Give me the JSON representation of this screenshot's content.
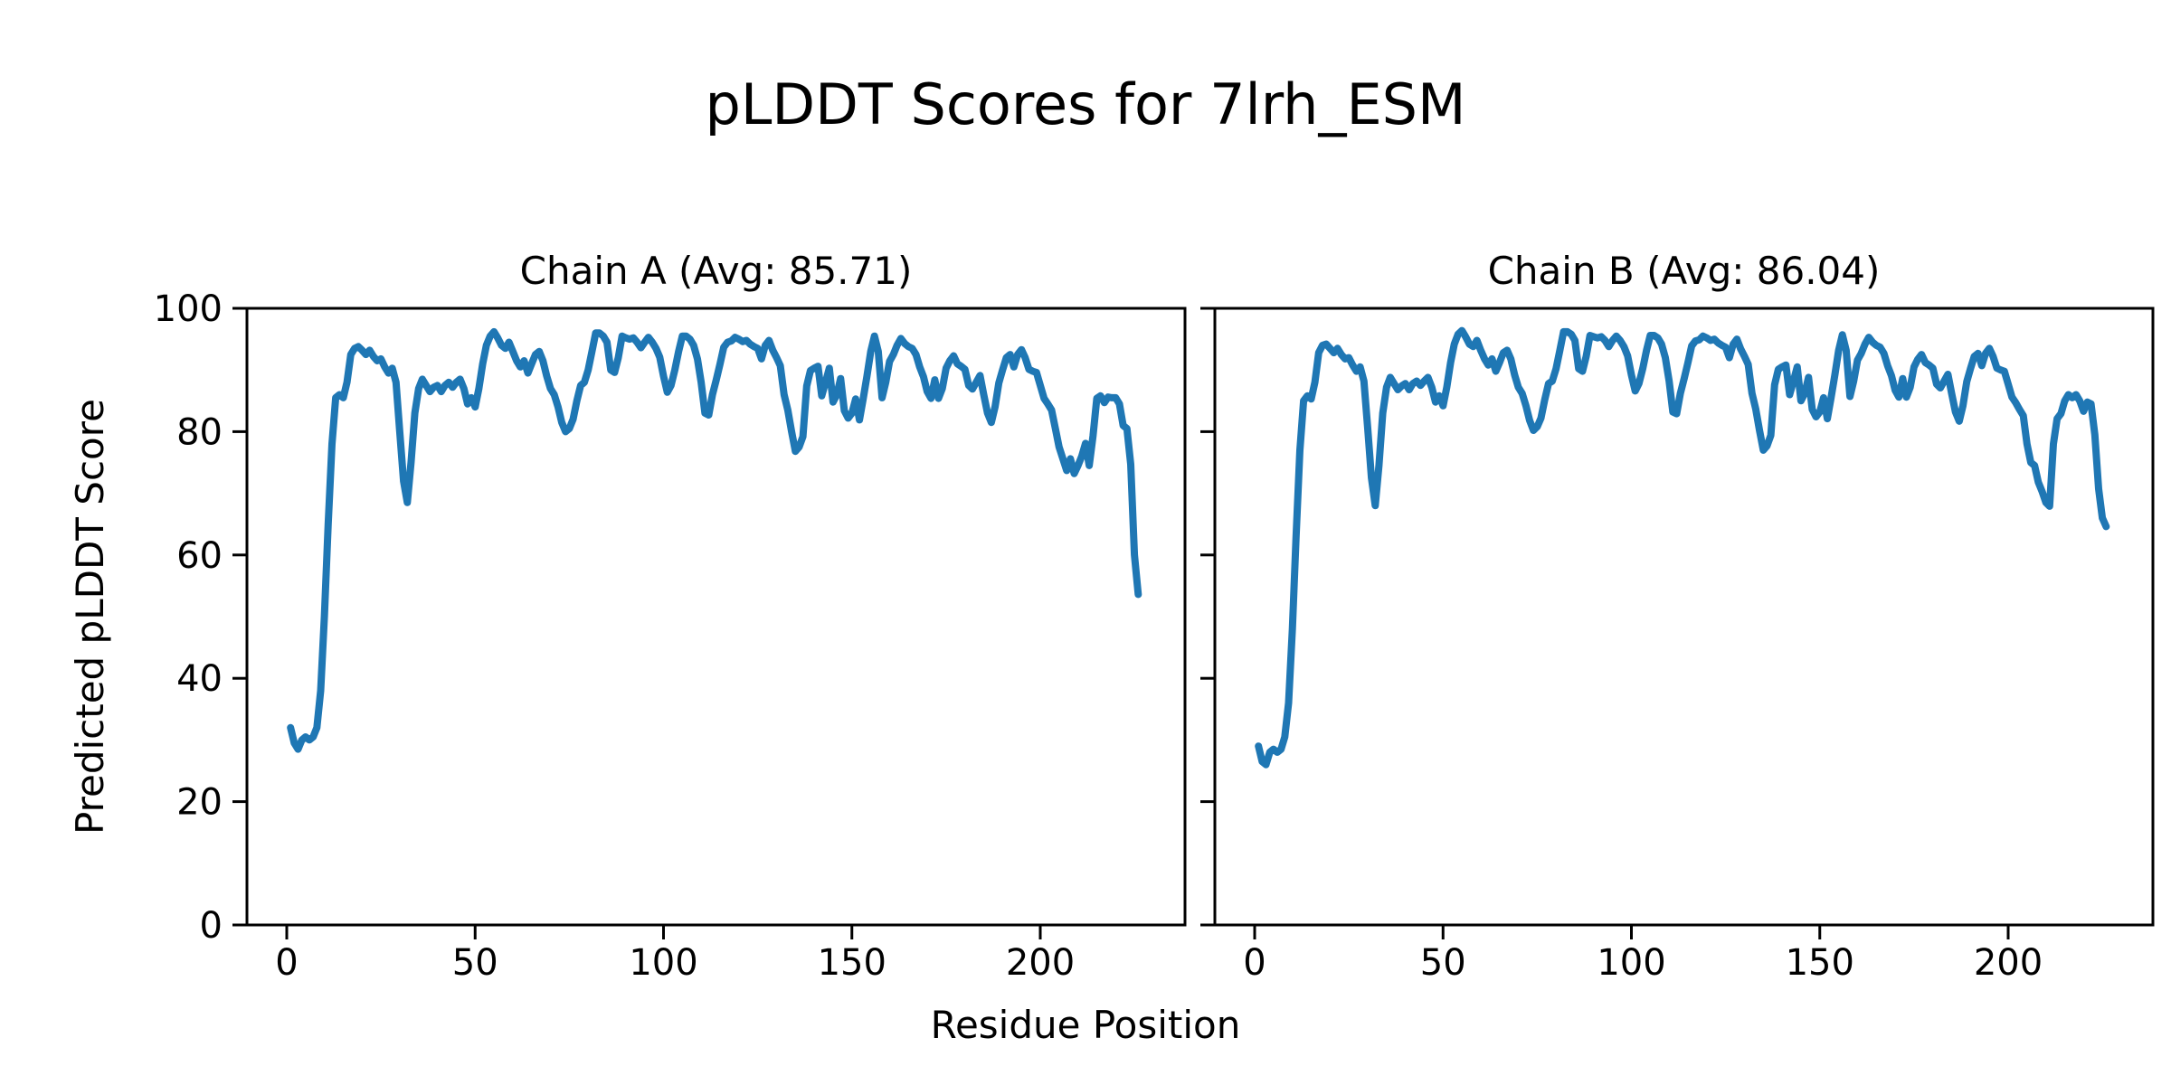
{
  "figure": {
    "title": "pLDDT Scores for 7lrh_ESM",
    "background_color": "#ffffff",
    "text_color": "#000000"
  },
  "chart_data": {
    "type": "line",
    "title": "pLDDT Scores for 7lrh_ESM",
    "xlabel": "Residue Position",
    "ylabel": "Predicted pLDDT Score",
    "line_color": "#1f77b4",
    "axis_color": "#000000",
    "grid": false,
    "legend": null,
    "ylim": [
      0,
      100
    ],
    "xlim": [
      -10.5,
      240.5
    ],
    "yticks": [
      0,
      20,
      40,
      60,
      80,
      100
    ],
    "xticks": [
      0,
      50,
      100,
      150,
      200
    ],
    "x_start": 1,
    "plots": [
      {
        "title": "Chain A (Avg: 85.71)",
        "chain": "A",
        "avg": 85.71,
        "values": [
          32,
          29.5,
          28.5,
          30,
          30.5,
          30,
          30.5,
          32,
          38,
          50,
          65,
          78,
          85.5,
          86,
          85.5,
          88,
          92.5,
          93.5,
          93.8,
          93.2,
          92.5,
          93.2,
          92.2,
          91.5,
          91.8,
          90.5,
          89.5,
          90.3,
          88,
          80,
          72,
          68.5,
          75,
          83,
          87,
          88.5,
          87.5,
          86.5,
          87.2,
          87.5,
          86.5,
          87.5,
          88,
          87.2,
          88,
          88.5,
          87,
          84.5,
          85.5,
          84,
          87,
          91,
          94,
          95.5,
          96.2,
          95.2,
          94,
          93.5,
          94.5,
          93,
          91.5,
          90.5,
          91.5,
          89.5,
          91,
          92.5,
          93,
          91.5,
          89,
          87,
          86,
          84,
          81.5,
          80,
          80.5,
          82,
          85,
          87.5,
          88,
          90,
          93,
          96,
          96,
          95.5,
          94.5,
          90,
          89.6,
          92,
          95.5,
          95.2,
          95,
          95.2,
          94.5,
          93.6,
          94.5,
          95.3,
          94.5,
          93.5,
          92.1,
          89,
          86.4,
          87.5,
          90,
          93,
          95.5,
          95.5,
          95,
          94,
          91.8,
          88,
          83,
          82.7,
          86,
          88.4,
          91,
          93.7,
          94.5,
          94.7,
          95.3,
          95,
          94.6,
          94.8,
          94.2,
          93.8,
          93.5,
          91.8,
          94,
          94.8,
          93.2,
          92,
          90.7,
          86,
          83.5,
          80,
          76.8,
          77.5,
          79.2,
          87.4,
          89.9,
          90.3,
          90.6,
          85.8,
          88,
          90.3,
          84.8,
          86,
          88.6,
          83.4,
          82.2,
          83,
          85.3,
          81.9,
          85.3,
          89,
          93,
          95.5,
          93,
          85.5,
          88,
          91.4,
          92.5,
          94,
          95.1,
          94.3,
          93.8,
          93.5,
          92.5,
          90.5,
          88.9,
          86.5,
          85.4,
          88.4,
          85.4,
          87,
          90.3,
          91.5,
          92.3,
          91,
          90.6,
          90.1,
          87.5,
          86.9,
          88,
          89.1,
          86,
          83,
          81.5,
          84,
          87.9,
          90,
          92,
          92.5,
          90.5,
          92.5,
          93.3,
          92,
          90.1,
          89.8,
          89.6,
          87.5,
          85.4,
          84.5,
          83.5,
          80.5,
          77.5,
          75.6,
          73.7,
          75.6,
          73.2,
          74.5,
          76,
          78.1,
          74.5,
          79.3,
          85.4,
          85.8,
          84.7,
          85.6,
          85.5,
          85.5,
          84.5,
          81,
          80.5,
          74.7,
          60,
          53.6
        ]
      },
      {
        "title": "Chain B (Avg: 86.04)",
        "chain": "B",
        "avg": 86.04,
        "values": [
          29,
          26.5,
          26,
          28,
          28.5,
          28,
          28.5,
          30.5,
          36,
          48,
          63,
          77,
          85,
          85.8,
          85.3,
          88,
          92.8,
          94,
          94.2,
          93.5,
          92.8,
          93.5,
          92.5,
          91.8,
          92,
          90.8,
          89.8,
          90.5,
          88.2,
          80.5,
          72.5,
          68,
          74.5,
          83,
          87.2,
          88.8,
          87.8,
          86.8,
          87.4,
          87.8,
          86.8,
          87.8,
          88.2,
          87.5,
          88.2,
          88.8,
          87.2,
          84.8,
          85.8,
          84.2,
          87.2,
          91.2,
          94.2,
          95.8,
          96.4,
          95.4,
          94.2,
          93.8,
          94.8,
          93.2,
          91.8,
          90.8,
          91.8,
          89.8,
          91.2,
          92.8,
          93.2,
          91.8,
          89.2,
          87.2,
          86.2,
          84.2,
          81.8,
          80.2,
          80.8,
          82.2,
          85.2,
          87.8,
          88.2,
          90.2,
          93.2,
          96.2,
          96.2,
          95.8,
          94.8,
          90.2,
          89.8,
          92.2,
          95.6,
          95.4,
          95.2,
          95.4,
          94.8,
          93.8,
          94.8,
          95.5,
          94.8,
          93.8,
          92.3,
          89.2,
          86.6,
          87.8,
          90.2,
          93.2,
          95.6,
          95.6,
          95.2,
          94.2,
          92,
          88.2,
          83.2,
          82.9,
          86.2,
          88.6,
          91.2,
          93.9,
          94.7,
          94.9,
          95.5,
          95.2,
          94.8,
          95,
          94.4,
          94,
          93.7,
          92,
          94.2,
          95,
          93.4,
          92.2,
          90.9,
          86.2,
          83.7,
          80.2,
          77,
          77.7,
          79.4,
          87.6,
          90.1,
          90.5,
          90.8,
          86,
          88.2,
          90.5,
          85,
          86.2,
          88.8,
          83.6,
          82.4,
          83.2,
          85.5,
          82.1,
          85.5,
          89.2,
          93.2,
          95.7,
          93.2,
          85.7,
          88.2,
          91.6,
          92.7,
          94.2,
          95.3,
          94.5,
          94,
          93.7,
          92.7,
          90.7,
          89.1,
          86.7,
          85.6,
          88.6,
          85.6,
          87.2,
          90.5,
          91.7,
          92.5,
          91.2,
          90.8,
          90.3,
          87.7,
          87.1,
          88.2,
          89.3,
          86.2,
          83.2,
          81.7,
          84.2,
          88.1,
          90.2,
          92.2,
          92.7,
          90.7,
          92.7,
          93.5,
          92.2,
          90.3,
          90,
          89.8,
          87.7,
          85.6,
          84.7,
          83.6,
          82.6,
          78,
          75,
          74.5,
          71.8,
          70.3,
          68.5,
          67.9,
          78,
          82.1,
          82.9,
          85,
          86,
          85.5,
          86,
          85,
          83.3,
          84.8,
          84.5,
          79.5,
          70.7,
          66,
          64.6
        ]
      }
    ]
  }
}
